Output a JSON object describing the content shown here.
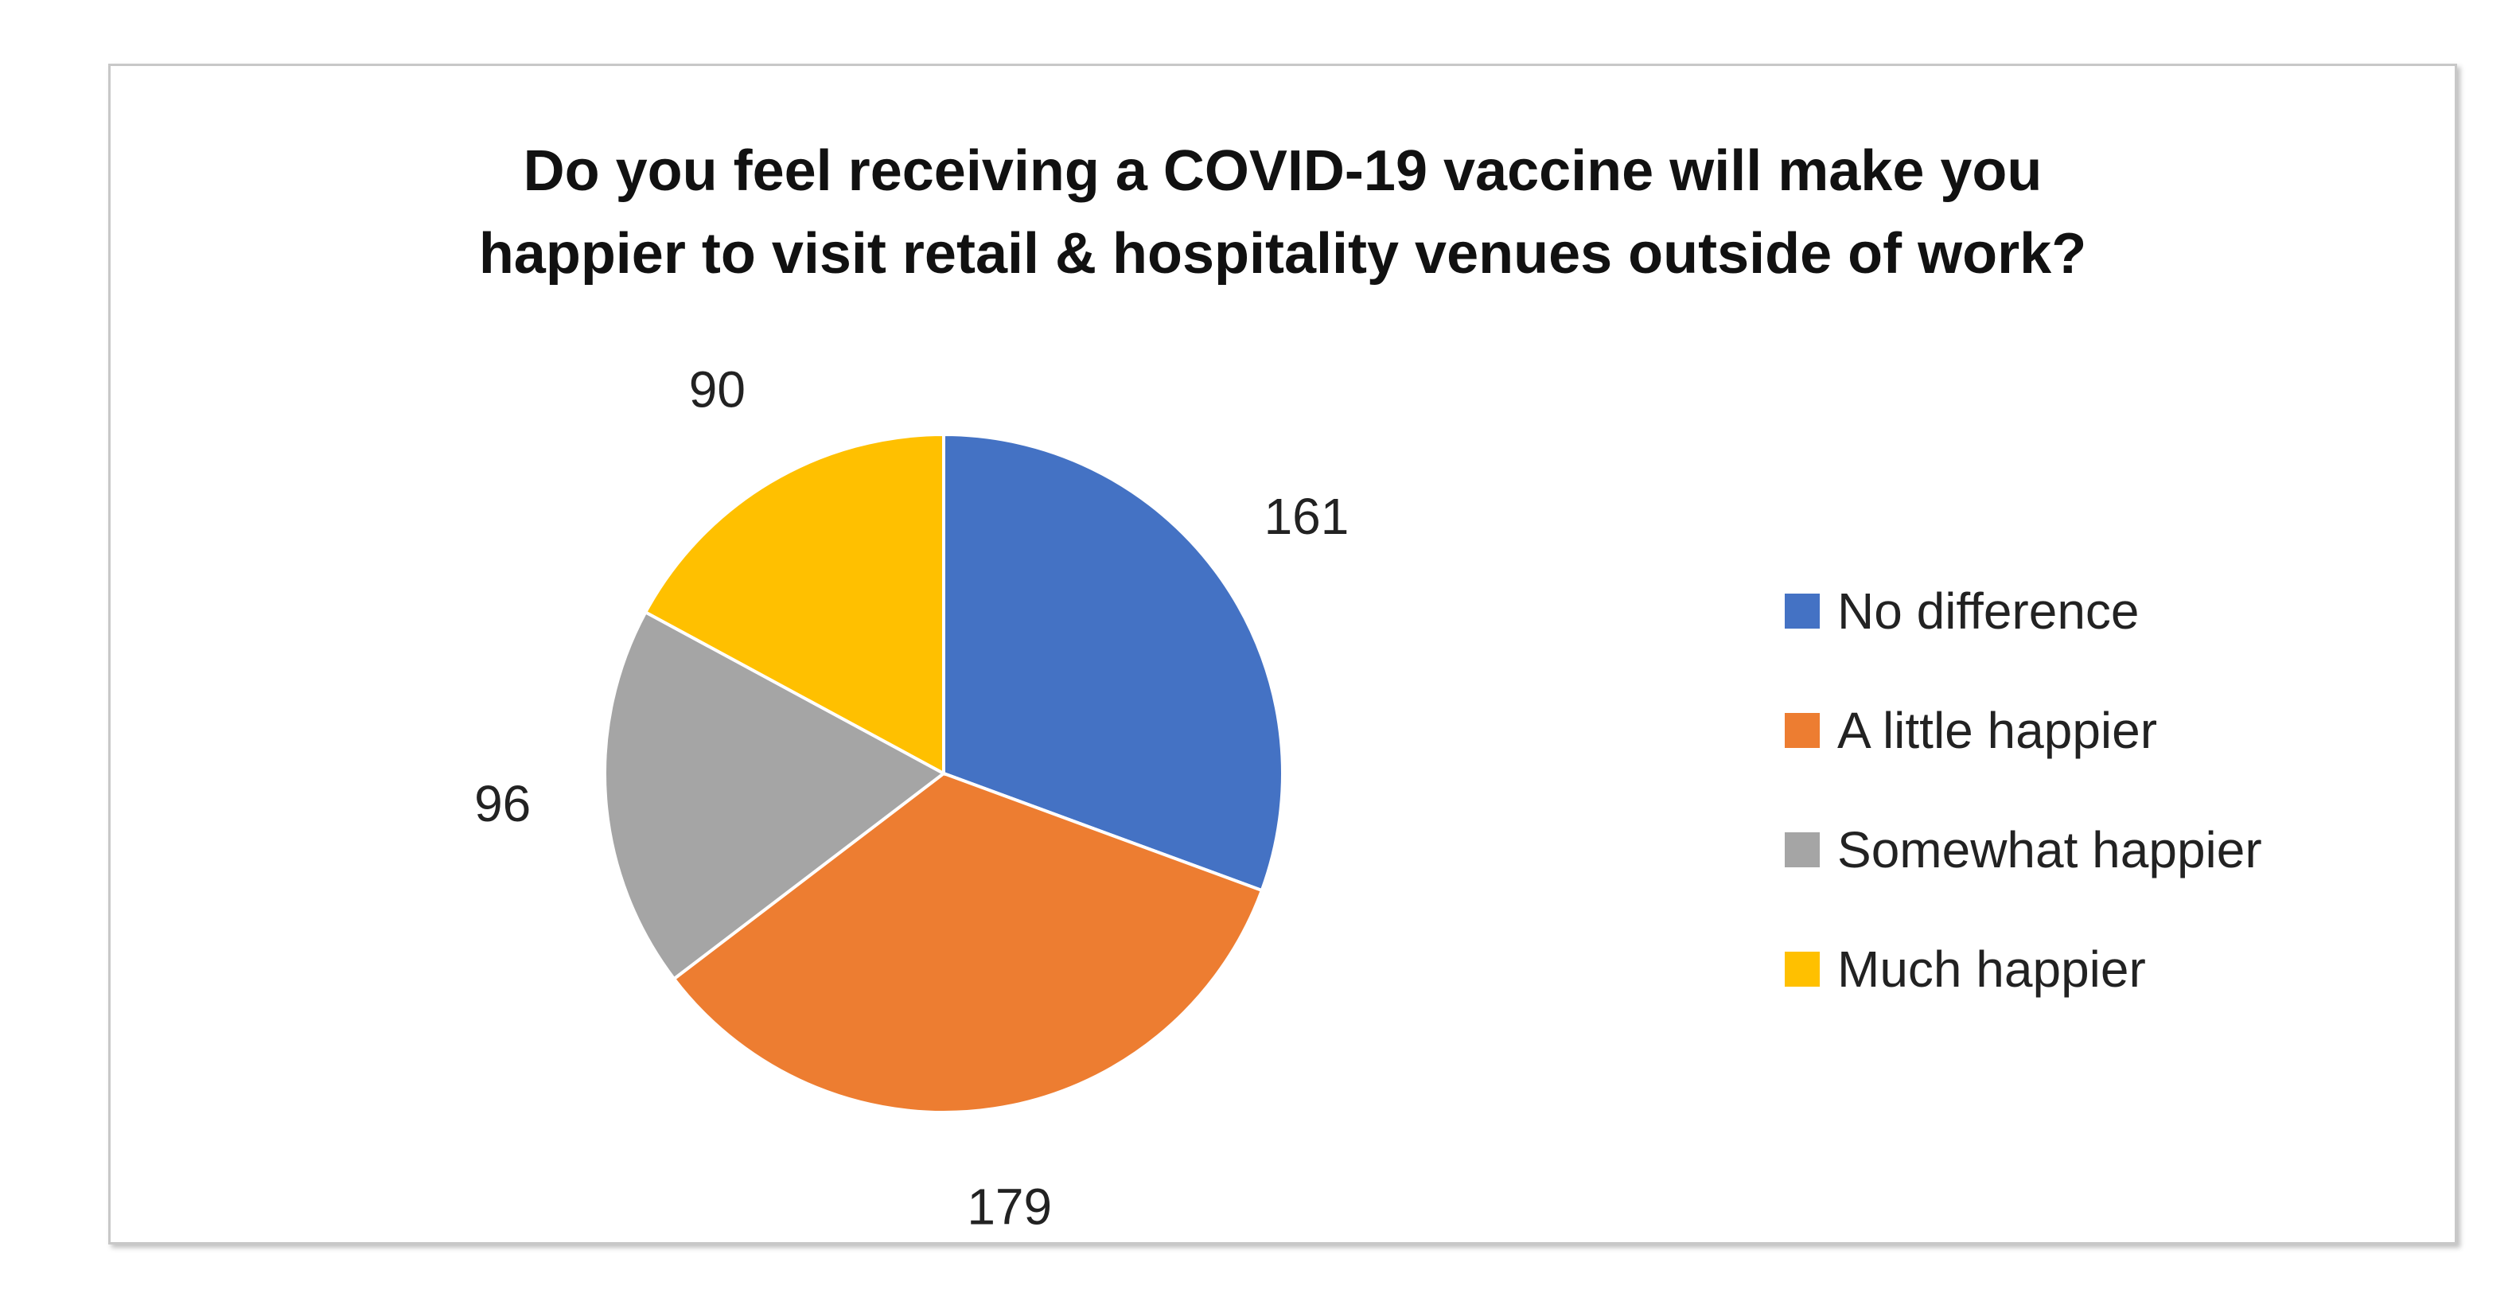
{
  "chart_data": {
    "type": "pie",
    "title_lines": [
      "Do you feel receiving a COVID-19 vaccine will make you",
      "happier to visit retail & hospitality venues outside of work?"
    ],
    "categories": [
      "No difference",
      "A little happier",
      "Somewhat happier",
      "Much happier"
    ],
    "values": [
      161,
      179,
      96,
      90
    ],
    "data_labels": [
      "161",
      "179",
      "96",
      "90"
    ],
    "colors": [
      "#4472C4",
      "#ED7D31",
      "#A5A5A5",
      "#FFC000"
    ],
    "start_angle_deg": 0,
    "direction": "clockwise",
    "legend_position": "right"
  }
}
